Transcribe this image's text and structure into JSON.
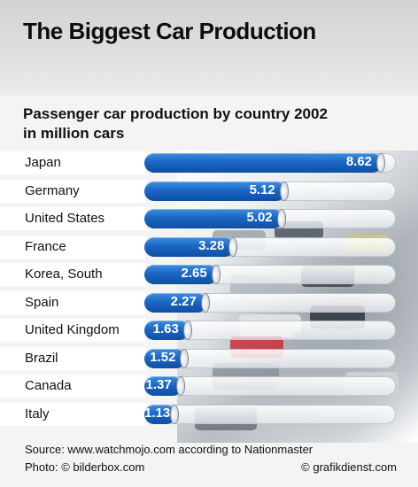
{
  "header": {
    "title": "The Biggest Car Production"
  },
  "chart_data": {
    "type": "bar",
    "orientation": "horizontal",
    "title": "Passenger car production by country 2002",
    "subtitle": "in million cars",
    "categories": [
      "Japan",
      "Germany",
      "United States",
      "France",
      "Korea, South",
      "Spain",
      "United Kingdom",
      "Brazil",
      "Canada",
      "Italy"
    ],
    "values": [
      8.62,
      5.12,
      5.02,
      3.28,
      2.65,
      2.27,
      1.63,
      1.52,
      1.37,
      1.13
    ],
    "value_labels": [
      "8.62",
      "5.12",
      "5.02",
      "3.28",
      "2.65",
      "2.27",
      "1.63",
      "1.52",
      "1.37",
      "1.13"
    ],
    "xlim": [
      0,
      9.1
    ],
    "bar_color": "#1a66c4",
    "grid": false,
    "legend": "none"
  },
  "footer": {
    "source": "Source: www.watchmojo.com according to Nationmaster",
    "photo": "Photo: © bilderbox.com",
    "agency": "© grafikdienst.com"
  }
}
